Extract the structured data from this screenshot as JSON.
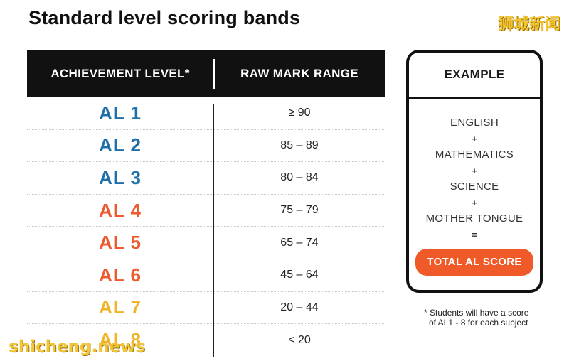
{
  "title": "Standard level scoring bands",
  "watermarks": {
    "top": "狮城新闻",
    "bottom": "shicheng.news"
  },
  "table": {
    "headers": {
      "level": "ACHIEVEMENT LEVEL*",
      "range": "RAW MARK RANGE"
    },
    "rows": [
      {
        "level": "AL 1",
        "range": "≥ 90",
        "color": "#1f6fa8"
      },
      {
        "level": "AL 2",
        "range": "85 – 89",
        "color": "#1f6fa8"
      },
      {
        "level": "AL 3",
        "range": "80 – 84",
        "color": "#1f6fa8"
      },
      {
        "level": "AL 4",
        "range": "75 – 79",
        "color": "#ec5a2e"
      },
      {
        "level": "AL 5",
        "range": "65 – 74",
        "color": "#ec5a2e"
      },
      {
        "level": "AL 6",
        "range": "45 – 64",
        "color": "#ec5a2e"
      },
      {
        "level": "AL 7",
        "range": "20 – 44",
        "color": "#f0b429"
      },
      {
        "level": "AL 8",
        "range": "< 20",
        "color": "#f0b429"
      }
    ]
  },
  "example": {
    "heading": "EXAMPLE",
    "subjects": [
      "ENGLISH",
      "MATHEMATICS",
      "SCIENCE",
      "MOTHER TONGUE"
    ],
    "plus": "+",
    "equals": "=",
    "total_label": "TOTAL AL SCORE"
  },
  "note": {
    "line1": "* Students will have a score",
    "line2": "of AL1 - 8 for each subject"
  },
  "colors": {
    "header_bg": "#111111",
    "total_button": "#f05a28"
  }
}
